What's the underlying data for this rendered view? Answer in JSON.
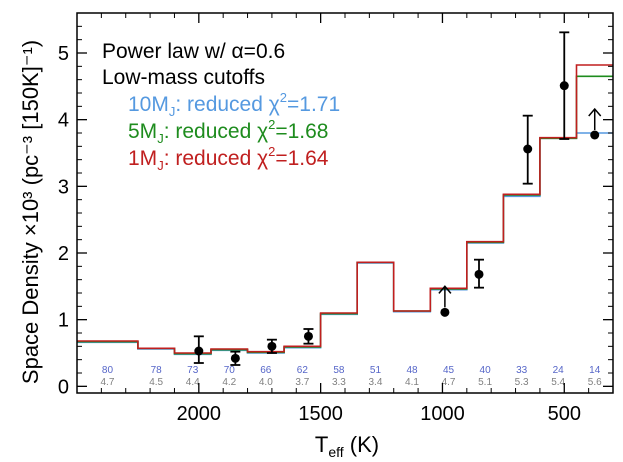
{
  "chart_data": {
    "type": "line",
    "x_reversed": true,
    "xlim": [
      2500,
      300
    ],
    "ylim": [
      -0.1,
      5.6
    ],
    "xlabel_main": "T",
    "xlabel_sub": "eff",
    "xlabel_unit": " (K)",
    "ylabel": "Space Density ×10³ (pc⁻³ [150K]⁻¹)",
    "xticks": [
      2000,
      1500,
      1000,
      500
    ],
    "yticks": [
      0,
      1,
      2,
      3,
      4,
      5
    ],
    "bin_edges": [
      2500,
      2250,
      2100,
      1950,
      1800,
      1650,
      1500,
      1350,
      1200,
      1050,
      900,
      750,
      600,
      450,
      300
    ],
    "series": [
      {
        "name": "10MJ: reduced χ²=1.71",
        "color": "#5599e0",
        "values": [
          0.66,
          0.56,
          0.48,
          0.54,
          0.5,
          0.58,
          1.08,
          1.85,
          1.12,
          1.45,
          2.15,
          2.85,
          3.72,
          3.8
        ]
      },
      {
        "name": "5MJ: reduced χ²=1.68",
        "color": "#1e8c1e",
        "values": [
          0.67,
          0.57,
          0.49,
          0.55,
          0.51,
          0.59,
          1.09,
          1.86,
          1.13,
          1.46,
          2.16,
          2.87,
          3.72,
          4.65
        ]
      },
      {
        "name": "1MJ: reduced χ²=1.64",
        "color": "#c01f1f",
        "values": [
          0.68,
          0.57,
          0.5,
          0.56,
          0.52,
          0.6,
          1.1,
          1.86,
          1.13,
          1.47,
          2.17,
          2.88,
          3.73,
          4.82
        ]
      }
    ],
    "points": [
      {
        "x": 2000,
        "y": 0.53,
        "err_lo": 0.18,
        "err_hi": 0.22,
        "limit": false
      },
      {
        "x": 1850,
        "y": 0.42,
        "err_lo": 0.1,
        "err_hi": 0.1,
        "limit": false
      },
      {
        "x": 1700,
        "y": 0.6,
        "err_lo": 0.1,
        "err_hi": 0.1,
        "limit": false
      },
      {
        "x": 1550,
        "y": 0.75,
        "err_lo": 0.11,
        "err_hi": 0.11,
        "limit": false
      },
      {
        "x": 990,
        "y": 1.11,
        "err_lo": 0,
        "err_hi": 0,
        "limit": true
      },
      {
        "x": 850,
        "y": 1.68,
        "err_lo": 0.2,
        "err_hi": 0.22,
        "limit": false
      },
      {
        "x": 650,
        "y": 3.56,
        "err_lo": 0.52,
        "err_hi": 0.5,
        "limit": false
      },
      {
        "x": 500,
        "y": 4.51,
        "err_lo": 0.8,
        "err_hi": 0.8,
        "limit": false
      },
      {
        "x": 375,
        "y": 3.77,
        "err_lo": 0,
        "err_hi": 0,
        "limit": true
      }
    ],
    "bin_counts": [
      {
        "n": "80",
        "z": "4.7"
      },
      {
        "n": "78",
        "z": "4.5"
      },
      {
        "n": "73",
        "z": "4.4"
      },
      {
        "n": "70",
        "z": "4.2"
      },
      {
        "n": "66",
        "z": "4.0"
      },
      {
        "n": "62",
        "z": "3.7"
      },
      {
        "n": "58",
        "z": "3.3"
      },
      {
        "n": "51",
        "z": "3.4"
      },
      {
        "n": "48",
        "z": "4.1"
      },
      {
        "n": "45",
        "z": "4.7"
      },
      {
        "n": "40",
        "z": "5.1"
      },
      {
        "n": "33",
        "z": "5.3"
      },
      {
        "n": "24",
        "z": "5.4"
      },
      {
        "n": "14",
        "z": "5.6"
      }
    ],
    "bin_count_colors": {
      "n": "#5565c8",
      "z": "#808080"
    },
    "annotations": {
      "title_line1": "Power law w/ α=0.6",
      "title_line2": "Low-mass cutoffs",
      "legend": [
        {
          "mass": "10M",
          "sub": "J",
          "text": ": reduced χ",
          "sup": "2",
          "value": "=1.71",
          "color": "#5599e0"
        },
        {
          "mass": "5M",
          "sub": "J",
          "text": ": reduced χ",
          "sup": "2",
          "value": "=1.68",
          "color": "#1e8c1e"
        },
        {
          "mass": "1M",
          "sub": "J",
          "text": ": reduced χ",
          "sup": "2",
          "value": "=1.64",
          "color": "#c01f1f"
        }
      ]
    }
  }
}
